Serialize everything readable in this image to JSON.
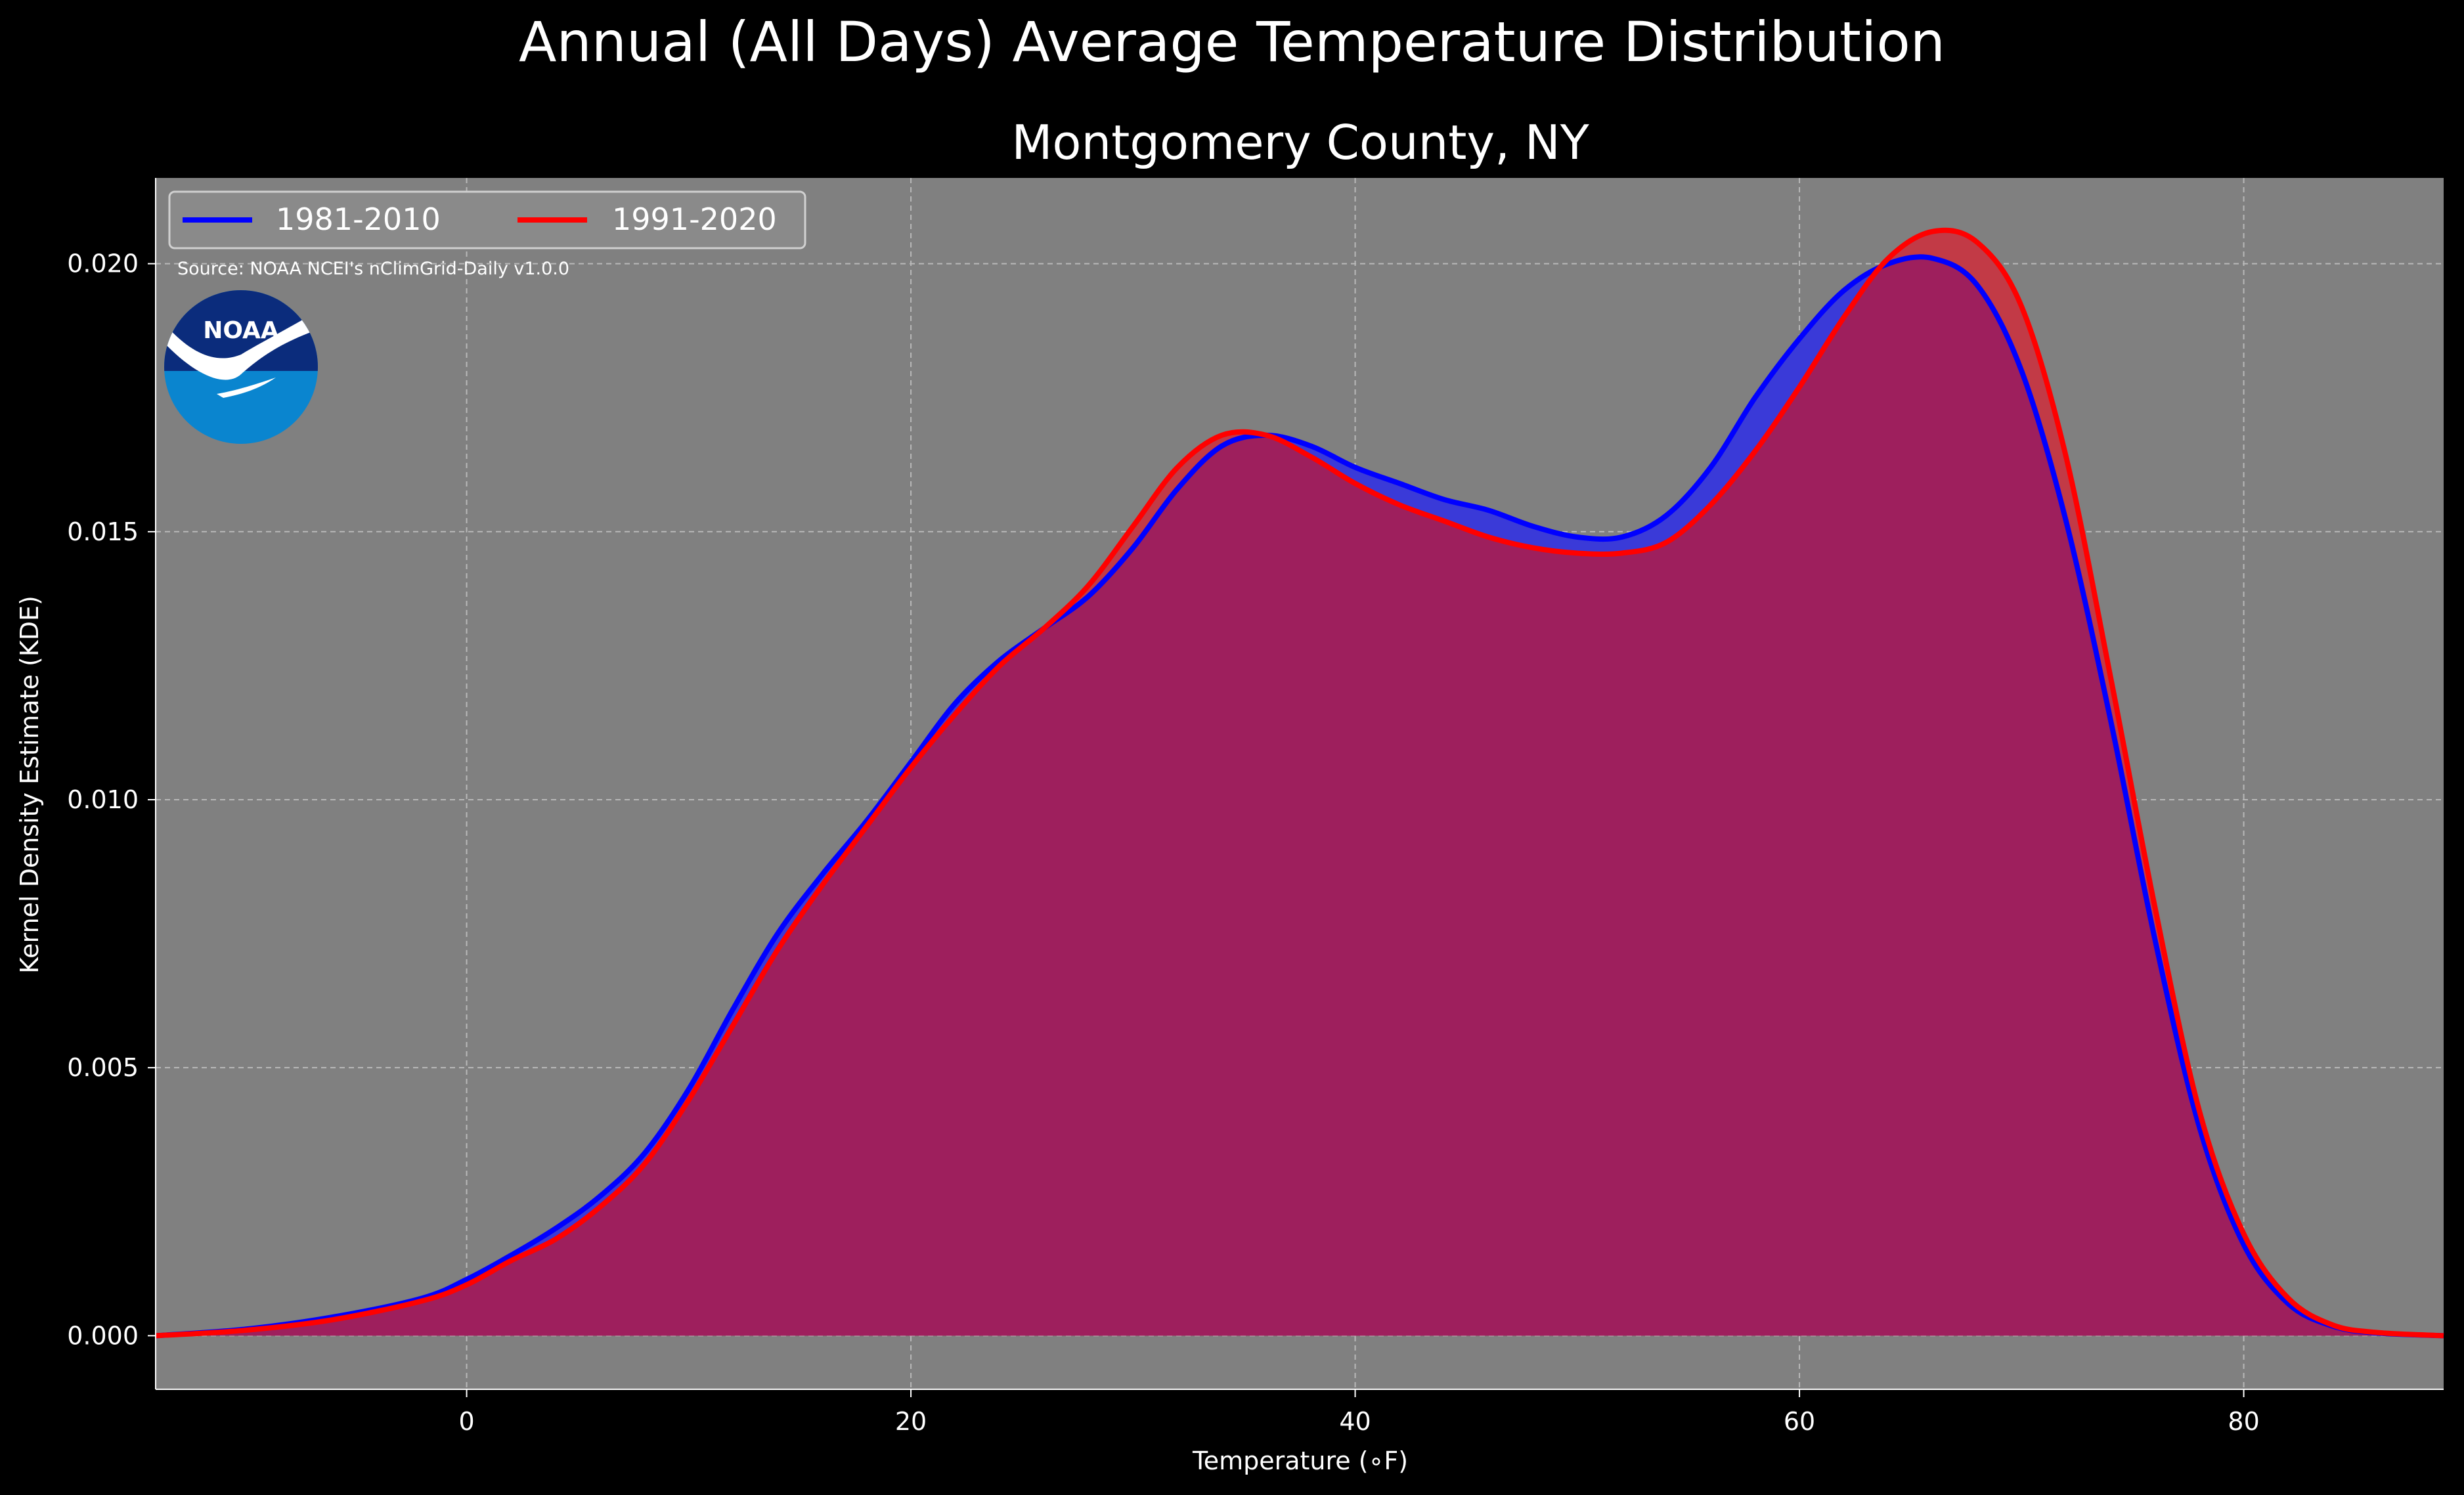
{
  "figure": {
    "suptitle": "Annual (All Days) Average Temperature Distribution"
  },
  "chart_data": {
    "type": "area",
    "title": "Montgomery County, NY",
    "xlabel": "Temperature (∘F)",
    "ylabel": "Kernel Density Estimate (KDE)",
    "xlim": [
      -14,
      89
    ],
    "ylim": [
      -0.001,
      0.0216
    ],
    "xticks": [
      0,
      20,
      40,
      60,
      80
    ],
    "xtick_labels": [
      "0",
      "20",
      "40",
      "60",
      "80"
    ],
    "yticks": [
      0.0,
      0.005,
      0.01,
      0.015,
      0.02
    ],
    "ytick_labels": [
      "0.000",
      "0.005",
      "0.010",
      "0.015",
      "0.020"
    ],
    "grid": true,
    "legend_position": "top-left",
    "source_note": "Source: NOAA NCEI's nClimGrid-Daily v1.0.0",
    "logo_text": "NOAA",
    "colors": {
      "background": "#000000",
      "axes_face": "#808080",
      "fill_overlap": "#9e1f5d"
    },
    "series": [
      {
        "name": "1981-2010",
        "color": "#0000ff",
        "fill": "#3a3ad8",
        "x": [
          -14,
          -10,
          -6,
          -2,
          0,
          2,
          4,
          6,
          8,
          10,
          12,
          14,
          16,
          18,
          20,
          22,
          24,
          26,
          28,
          30,
          32,
          34,
          36,
          38,
          40,
          42,
          44,
          46,
          48,
          50,
          52,
          54,
          56,
          58,
          60,
          62,
          64,
          66,
          68,
          70,
          72,
          74,
          76,
          78,
          80,
          82,
          84,
          86,
          89
        ],
        "y": [
          0.0,
          0.00012,
          0.00035,
          0.0007,
          0.00105,
          0.0015,
          0.002,
          0.0026,
          0.0034,
          0.0046,
          0.0061,
          0.0075,
          0.0086,
          0.0096,
          0.0107,
          0.0118,
          0.0126,
          0.0132,
          0.0138,
          0.0147,
          0.0158,
          0.0166,
          0.0168,
          0.0166,
          0.0162,
          0.0159,
          0.0156,
          0.0154,
          0.0151,
          0.0149,
          0.0149,
          0.0153,
          0.0162,
          0.0175,
          0.0186,
          0.0195,
          0.02,
          0.0201,
          0.0196,
          0.018,
          0.0152,
          0.0115,
          0.0074,
          0.0039,
          0.0017,
          0.0006,
          0.00018,
          5e-05,
          0.0
        ]
      },
      {
        "name": "1991-2020",
        "color": "#ff0000",
        "fill": "#c23a46",
        "x": [
          -14,
          -10,
          -6,
          -2,
          0,
          2,
          4,
          6,
          8,
          10,
          12,
          14,
          16,
          18,
          20,
          22,
          24,
          26,
          28,
          30,
          32,
          34,
          36,
          38,
          40,
          42,
          44,
          46,
          48,
          50,
          52,
          54,
          56,
          58,
          60,
          62,
          64,
          66,
          68,
          70,
          72,
          74,
          76,
          78,
          80,
          82,
          84,
          86,
          89
        ],
        "y": [
          0.0,
          0.0001,
          0.0003,
          0.00065,
          0.00095,
          0.0014,
          0.0018,
          0.0024,
          0.0032,
          0.0044,
          0.0058,
          0.0072,
          0.0084,
          0.0095,
          0.0106,
          0.0116,
          0.0125,
          0.0132,
          0.014,
          0.0151,
          0.0162,
          0.0168,
          0.0168,
          0.0164,
          0.0159,
          0.0155,
          0.0152,
          0.0149,
          0.0147,
          0.0146,
          0.0146,
          0.0148,
          0.0155,
          0.0165,
          0.0177,
          0.019,
          0.0201,
          0.0206,
          0.0204,
          0.0192,
          0.0164,
          0.0123,
          0.008,
          0.0042,
          0.0019,
          0.0007,
          0.0002,
          6e-05,
          0.0
        ]
      }
    ]
  }
}
